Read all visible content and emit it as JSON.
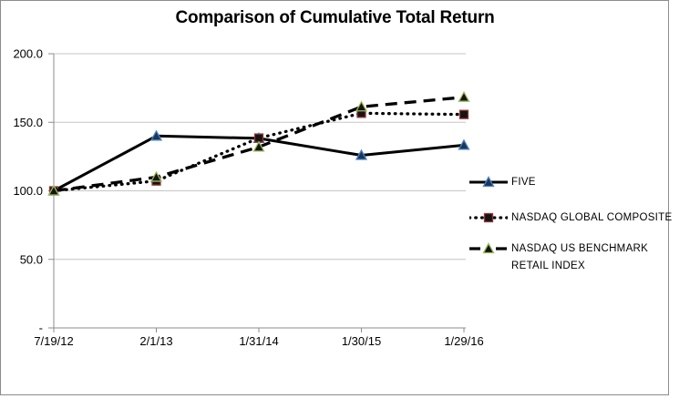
{
  "title": "Comparison of Cumulative Total Return",
  "chart_data": {
    "type": "line",
    "title": "Comparison of Cumulative Total Return",
    "categories": [
      "7/19/12",
      "2/1/13",
      "1/31/14",
      "1/30/15",
      "1/29/16"
    ],
    "series": [
      {
        "name": "FIVE",
        "legend_lines": [
          "FIVE"
        ],
        "values": [
          100.0,
          140.0,
          138.3,
          125.9,
          133.3
        ],
        "line_style": "solid",
        "line_color": "#000000",
        "marker": "triangle",
        "marker_border": "#4F81BD",
        "marker_fill": "#17375E"
      },
      {
        "name": "NASDAQ GLOBAL COMPOSITE",
        "legend_lines": [
          "NASDAQ GLOBAL COMPOSITE"
        ],
        "values": [
          100.0,
          107.2,
          138.5,
          156.6,
          155.7
        ],
        "line_style": "dotted",
        "line_color": "#000000",
        "marker": "square",
        "marker_border": "#953735",
        "marker_fill": "#141414"
      },
      {
        "name": "NASDAQ US BENCHMARK RETAIL INDEX",
        "legend_lines": [
          "NASDAQ US BENCHMARK",
          "RETAIL INDEX"
        ],
        "values": [
          100.0,
          110.0,
          132.0,
          161.3,
          168.3
        ],
        "line_style": "dashed",
        "line_color": "#000000",
        "marker": "triangle",
        "marker_border": "#9BBB59",
        "marker_fill": "#141414"
      }
    ],
    "y_ticks": [
      {
        "value": 0,
        "label": "-"
      },
      {
        "value": 50,
        "label": "50.0"
      },
      {
        "value": 100,
        "label": "100.0"
      },
      {
        "value": 150,
        "label": "150.0"
      },
      {
        "value": 200,
        "label": "200.0"
      }
    ],
    "ylim": [
      0,
      200
    ],
    "xlabel": "",
    "ylabel": "",
    "grid": true,
    "legend_position": "right",
    "colors": {
      "gridline": "#C6C6C6",
      "axis": "#8C8C8C",
      "text": "#000000"
    }
  },
  "legend_tops": [
    190,
    229,
    263
  ]
}
